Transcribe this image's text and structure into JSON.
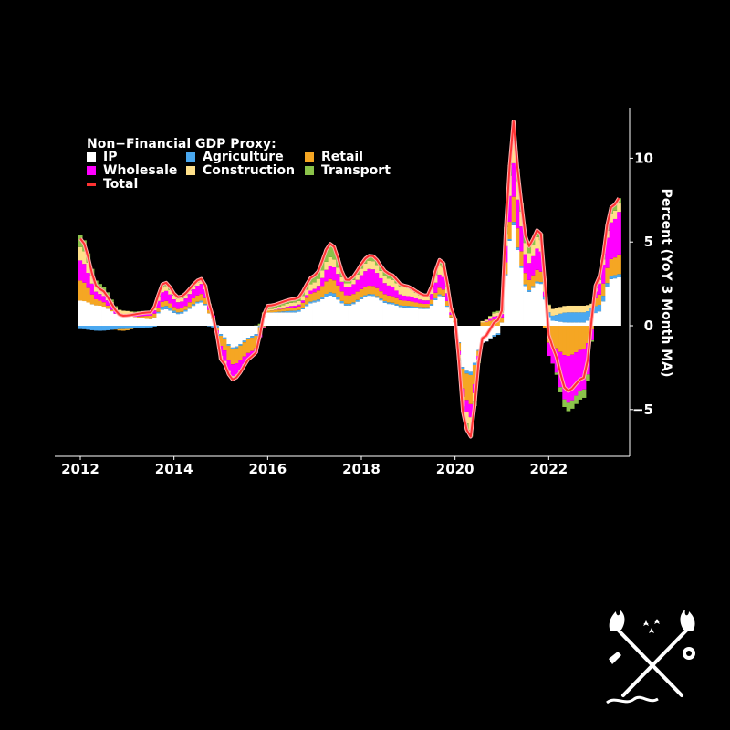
{
  "chart_data": {
    "type": "bar",
    "title": "",
    "legend_title": "Non−Financial GDP Proxy:",
    "legend_position": "top-left",
    "ylabel": "Percent (YoY 3 Month MA)",
    "y_axis_side": "right",
    "ylim": [
      -7.8,
      13
    ],
    "yticks": [
      -5,
      0,
      5,
      10
    ],
    "ytick_labels": [
      "−5",
      "0",
      "5",
      "10"
    ],
    "xlim": [
      2011.95,
      2023.85
    ],
    "xticks": [
      2012,
      2014,
      2016,
      2018,
      2020,
      2022
    ],
    "xtick_labels": [
      "2012",
      "2014",
      "2016",
      "2018",
      "2020",
      "2022"
    ],
    "grid": false,
    "stacked": true,
    "frequency": "monthly",
    "start_year": 2012,
    "series": [
      {
        "name": "IP",
        "color": "#ffffff",
        "key": "ip"
      },
      {
        "name": "Agriculture",
        "color": "#4aa8f0",
        "key": "ag"
      },
      {
        "name": "Retail",
        "color": "#f5a623",
        "key": "rt"
      },
      {
        "name": "Wholesale",
        "color": "#ff00ff",
        "key": "wh"
      },
      {
        "name": "Construction",
        "color": "#ffe08a",
        "key": "cn"
      },
      {
        "name": "Transport",
        "color": "#8bc34a",
        "key": "tr"
      }
    ],
    "total": {
      "name": "Total",
      "color": "#ff3333"
    },
    "anchors": [
      [
        2012.0,
        1.5,
        -0.2,
        1.2,
        1.2,
        0.8,
        0.7
      ],
      [
        2012.4,
        1.2,
        -0.3,
        0.3,
        0.4,
        0.3,
        0.3
      ],
      [
        2012.9,
        0.6,
        -0.2,
        -0.1,
        0.1,
        0.2,
        0.0
      ],
      [
        2013.5,
        0.4,
        -0.1,
        0.2,
        0.1,
        0.1,
        0.1
      ],
      [
        2013.8,
        1.0,
        0.2,
        0.3,
        0.6,
        0.3,
        0.2
      ],
      [
        2014.1,
        0.7,
        0.1,
        0.2,
        0.4,
        0.2,
        0.1
      ],
      [
        2014.6,
        1.4,
        0.1,
        0.4,
        0.6,
        0.2,
        0.1
      ],
      [
        2014.85,
        0.4,
        -0.1,
        0.1,
        0.1,
        0.0,
        0.0
      ],
      [
        2015.0,
        -0.5,
        -0.1,
        -0.6,
        -0.6,
        -0.2,
        0.0
      ],
      [
        2015.25,
        -1.3,
        -0.1,
        -0.9,
        -0.7,
        -0.1,
        -0.1
      ],
      [
        2015.7,
        -0.6,
        -0.1,
        -0.8,
        -0.3,
        0.0,
        0.0
      ],
      [
        2016.0,
        0.8,
        0.0,
        0.1,
        0.0,
        0.1,
        0.2
      ],
      [
        2016.6,
        0.8,
        0.1,
        0.2,
        0.1,
        0.2,
        0.2
      ],
      [
        2017.0,
        1.4,
        0.1,
        0.5,
        0.2,
        0.4,
        0.4
      ],
      [
        2017.35,
        1.8,
        0.2,
        0.8,
        0.8,
        0.5,
        0.8
      ],
      [
        2017.7,
        1.2,
        0.1,
        0.5,
        0.5,
        0.2,
        0.2
      ],
      [
        2018.2,
        1.8,
        0.1,
        0.5,
        1.0,
        0.5,
        0.3
      ],
      [
        2018.6,
        1.3,
        0.1,
        0.4,
        0.6,
        0.4,
        0.3
      ],
      [
        2018.9,
        1.1,
        0.1,
        0.3,
        0.3,
        0.5,
        0.1
      ],
      [
        2019.4,
        1.0,
        0.1,
        0.2,
        0.2,
        0.2,
        0.1
      ],
      [
        2019.7,
        1.8,
        0.1,
        0.4,
        0.8,
        0.6,
        0.3
      ],
      [
        2020.0,
        0.2,
        0.0,
        0.1,
        0.0,
        0.1,
        0.0
      ],
      [
        2020.18,
        -2.5,
        -0.1,
        -1.2,
        -0.5,
        -0.6,
        -0.3
      ],
      [
        2020.3,
        -2.8,
        -0.2,
        -1.8,
        -0.8,
        -0.8,
        -0.4
      ],
      [
        2020.6,
        -1.0,
        0.0,
        0.2,
        0.0,
        0.1,
        0.0
      ],
      [
        2020.9,
        -0.5,
        -0.1,
        0.4,
        0.2,
        0.2,
        0.1
      ],
      [
        2021.0,
        0.2,
        0.0,
        0.3,
        0.2,
        0.1,
        0.1
      ],
      [
        2021.15,
        5.0,
        0.1,
        1.0,
        1.5,
        1.2,
        0.6
      ],
      [
        2021.25,
        6.0,
        0.2,
        1.5,
        2.0,
        1.4,
        1.1
      ],
      [
        2021.4,
        3.5,
        0.1,
        0.9,
        1.5,
        0.9,
        0.5
      ],
      [
        2021.55,
        2.0,
        0.1,
        0.6,
        1.0,
        0.6,
        0.4
      ],
      [
        2021.8,
        2.6,
        0.1,
        0.7,
        1.3,
        0.7,
        0.4
      ],
      [
        2022.05,
        0.3,
        0.3,
        -1.2,
        -1.0,
        0.4,
        0.0
      ],
      [
        2022.4,
        0.2,
        0.6,
        -1.8,
        -2.8,
        0.4,
        -0.5
      ],
      [
        2022.75,
        0.2,
        0.6,
        -1.4,
        -2.4,
        0.4,
        -0.5
      ],
      [
        2023.05,
        0.8,
        0.4,
        0.6,
        0.6,
        0.2,
        0.2
      ],
      [
        2023.35,
        2.8,
        0.2,
        1.0,
        2.2,
        0.5,
        0.4
      ],
      [
        2023.55,
        2.9,
        0.2,
        1.2,
        2.6,
        0.5,
        0.3
      ]
    ]
  },
  "logo": {
    "name": "crossed torch and key emblem"
  }
}
